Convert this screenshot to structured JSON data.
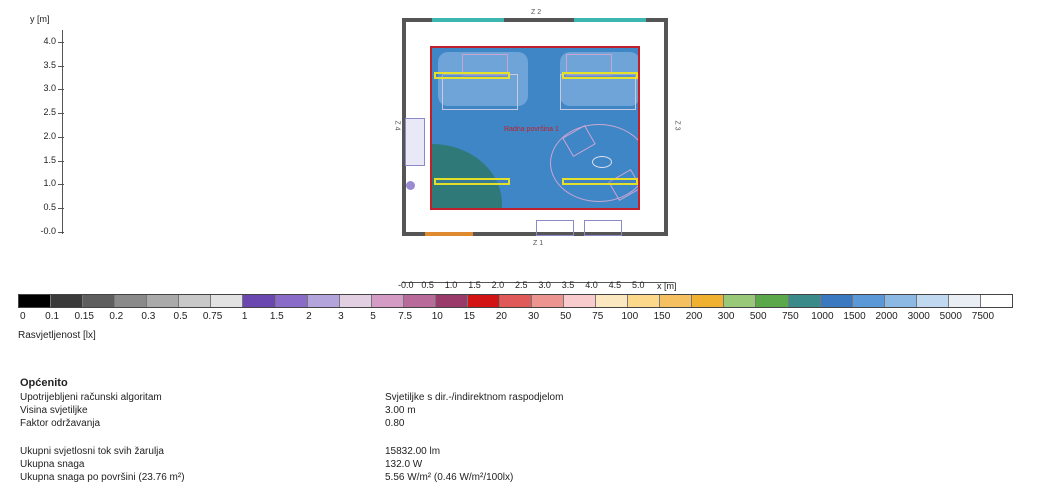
{
  "y_axis": {
    "label": "y [m]",
    "ticks": [
      "4.0",
      "3.5",
      "3.0",
      "2.5",
      "2.0",
      "1.5",
      "1.0",
      "0.5",
      "-0.0"
    ]
  },
  "x_axis": {
    "ticks": [
      "-0.0",
      "0.5",
      "1.0",
      "1.5",
      "2.0",
      "2.5",
      "3.0",
      "3.5",
      "4.0",
      "4.5",
      "5.0"
    ],
    "unit": "x [m]"
  },
  "plan": {
    "dim_top": "Z 2",
    "dim_bottom": "Z 1",
    "dim_right": "Z 3",
    "dim_left": "Z 4",
    "room_label": "Radna površina 1"
  },
  "scale": {
    "colors": [
      "#000000",
      "#3a3a3a",
      "#5e5e5e",
      "#8a8a8a",
      "#aaaaaa",
      "#c8c8c8",
      "#e2e2e2",
      "#6a48b0",
      "#8a6cc8",
      "#b3a4dc",
      "#e2cfe2",
      "#d49cc4",
      "#b86a9a",
      "#9a3a6a",
      "#d21414",
      "#e05a5a",
      "#ec9490",
      "#f8cccc",
      "#fce8c0",
      "#fcd88a",
      "#f4c060",
      "#f0b030",
      "#98c878",
      "#5aa84a",
      "#3a8a8a",
      "#3a78c0",
      "#5a98d8",
      "#8cb8e4",
      "#c0d8f0",
      "#e8eef4",
      "#ffffff"
    ],
    "labels": [
      "0",
      "0.1",
      "0.15",
      "0.2",
      "0.3",
      "0.5",
      "0.75",
      "1",
      "1.5",
      "2",
      "3",
      "5",
      "7.5",
      "10",
      "15",
      "20",
      "30",
      "50",
      "75",
      "100",
      "150",
      "200",
      "300",
      "500",
      "750",
      "1000",
      "1500",
      "2000",
      "3000",
      "5000",
      "7500"
    ],
    "unit_label": "Rasvjetljenost [lx]"
  },
  "general": {
    "title": "Općenito",
    "rows": [
      {
        "key": "Upotrijebljeni računski algoritam",
        "value": "Svjetiljke s dir.-/indirektnom raspodjelom"
      },
      {
        "key": "Visina svjetiljke",
        "value": "3.00 m"
      },
      {
        "key": "Faktor održavanja",
        "value": "0.80"
      },
      {
        "key": "Ukupni svjetlosni tok svih žarulja",
        "value": "15832.00 lm"
      },
      {
        "key": "Ukupna snaga",
        "value": "132.0 W"
      },
      {
        "key": "Ukupna snaga po površini (23.76 m²)",
        "value": "5.56 W/m² (0.46 W/m²/100lx)"
      }
    ]
  }
}
